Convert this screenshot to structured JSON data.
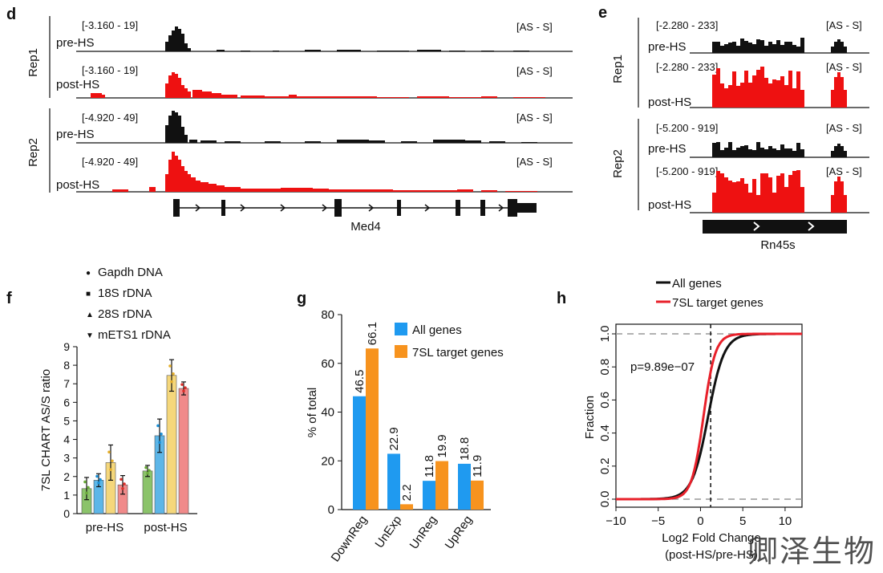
{
  "panels": {
    "d": "d",
    "e": "e",
    "f": "f",
    "g": "g",
    "h": "h"
  },
  "colors": {
    "black": "#111111",
    "red": "#ee1111",
    "blue": "#1f9af0",
    "orange": "#f7931e",
    "green": "#8bc36a",
    "lightblue": "#5db6e8",
    "yellow": "#f5d77b",
    "pink": "#f08a8a"
  },
  "panel_d": {
    "rep_labels": [
      "Rep1",
      "Rep2"
    ],
    "tracks": [
      {
        "range": "[-3.160 - 19]",
        "name": "pre-HS",
        "strand": "[AS - S]",
        "color": "black"
      },
      {
        "range": "[-3.160 - 19]",
        "name": "post-HS",
        "strand": "[AS - S]",
        "color": "red"
      },
      {
        "range": "[-4.920 - 49]",
        "name": "pre-HS",
        "strand": "[AS - S]",
        "color": "black"
      },
      {
        "range": "[-4.920 - 49]",
        "name": "post-HS",
        "strand": "[AS - S]",
        "color": "red"
      }
    ],
    "gene": "Med4"
  },
  "panel_e": {
    "rep_labels": [
      "Rep1",
      "Rep2"
    ],
    "tracks": [
      {
        "range": "[-2.280 - 233]",
        "name": "pre-HS",
        "strand": "[AS - S]",
        "color": "black"
      },
      {
        "range": "[-2.280 - 233]",
        "name": "post-HS",
        "strand": "[AS - S]",
        "color": "red"
      },
      {
        "range": "[-5.200 - 919]",
        "name": "pre-HS",
        "strand": "[AS - S]",
        "color": "black"
      },
      {
        "range": "[-5.200 - 919]",
        "name": "post-HS",
        "strand": "[AS - S]",
        "color": "red"
      }
    ],
    "gene": "Rn45s"
  },
  "chart_data": [
    {
      "id": "f",
      "type": "bar",
      "ylabel": "7SL CHART AS/S ratio",
      "ylim": [
        0,
        9
      ],
      "yticks": [
        0,
        1,
        2,
        3,
        4,
        5,
        6,
        7,
        8,
        9
      ],
      "categories": [
        "pre-HS",
        "post-HS"
      ],
      "series": [
        {
          "name": "Gapdh DNA",
          "values": [
            1.35,
            2.3
          ],
          "errors": [
            0.6,
            0.3
          ],
          "color": "#8bc36a",
          "marker": "#6aaa3a",
          "symbol": "●"
        },
        {
          "name": "18S rDNA",
          "values": [
            1.8,
            4.2
          ],
          "errors": [
            0.35,
            0.9
          ],
          "color": "#5db6e8",
          "marker": "#1a8fd6",
          "symbol": "■"
        },
        {
          "name": "28S rDNA",
          "values": [
            2.75,
            7.45
          ],
          "errors": [
            0.95,
            0.85
          ],
          "color": "#f5d77b",
          "marker": "#e6b02e",
          "symbol": "▲"
        },
        {
          "name": "mETS1 rDNA",
          "values": [
            1.55,
            6.75
          ],
          "errors": [
            0.5,
            0.35
          ],
          "color": "#f08a8a",
          "marker": "#d9302b",
          "symbol": "▼"
        }
      ]
    },
    {
      "id": "g",
      "type": "bar",
      "ylabel": "% of total",
      "ylim": [
        0,
        80
      ],
      "yticks": [
        0,
        20,
        40,
        60,
        80
      ],
      "categories": [
        "DownReg",
        "UnExp",
        "UnReg",
        "UpReg"
      ],
      "series": [
        {
          "name": "All genes",
          "values": [
            46.5,
            22.9,
            11.8,
            18.8
          ],
          "labels": [
            "46.5",
            "22.9",
            "11.8",
            "18.8"
          ],
          "color": "#1f9af0"
        },
        {
          "name": "7SL target genes",
          "values": [
            66.1,
            2.2,
            19.9,
            11.9
          ],
          "labels": [
            "66.1",
            "2.2",
            "19.9",
            "11.9"
          ],
          "color": "#f7931e"
        }
      ]
    },
    {
      "id": "h",
      "type": "line",
      "title_legend": [
        "All genes",
        "7SL target genes"
      ],
      "xlabel_line1": "Log2 Fold Change",
      "xlabel_line2": "(post-HS/pre-HS)",
      "ylabel": "Fraction",
      "xlim": [
        -10,
        12
      ],
      "ylim": [
        0,
        1
      ],
      "xticks": [
        -10,
        -5,
        0,
        5,
        10
      ],
      "yticks": [
        0.0,
        0.2,
        0.4,
        0.6,
        0.8,
        1.0
      ],
      "ytick_labels": [
        "0.0",
        "0.2",
        "0.4",
        "0.6",
        "0.8",
        "1.0"
      ],
      "annotation": "p=9.89e−07",
      "vline_x": 1.2,
      "series": [
        {
          "name": "All genes",
          "type": "ecdf",
          "mu": 0.9,
          "s": 0.95,
          "color": "#111111"
        },
        {
          "name": "7SL target genes",
          "type": "ecdf",
          "mu": 0.35,
          "s": 0.7,
          "color": "#e8202a"
        }
      ]
    }
  ],
  "watermark": "卿泽生物"
}
